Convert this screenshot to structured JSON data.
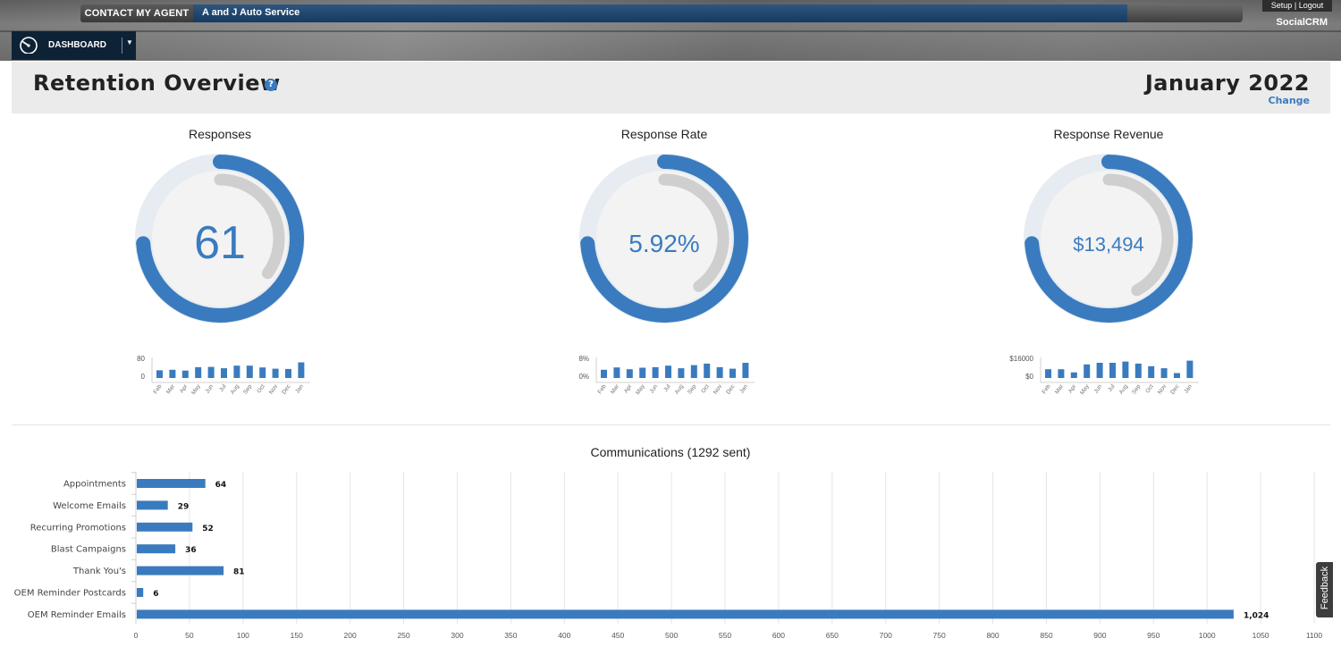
{
  "topbar": {
    "contact_label": "CONTACT MY AGENT",
    "dealer_name": "A and J Auto Service",
    "setup_label": "Setup",
    "logout_label": "Logout",
    "separator": "|",
    "brand": "SocialCRM",
    "dashboard_label": "DASHBOARD"
  },
  "header": {
    "title": "Retention Overview",
    "help": "?",
    "month": "January 2022",
    "change": "Change"
  },
  "kpis": [
    {
      "title": "Responses",
      "value": "61",
      "progress": 0.74,
      "comparison": 0.35,
      "spark": {
        "ymax_label": "80",
        "ymin_label": "0",
        "ymax": 80,
        "months": [
          "Feb",
          "Mar",
          "Apr",
          "May",
          "Jun",
          "Jul",
          "Aug",
          "Sep",
          "Oct",
          "Nov",
          "Dec",
          "Jan"
        ],
        "values": [
          30,
          32,
          29,
          42,
          43,
          38,
          48,
          48,
          41,
          36,
          35,
          61
        ]
      }
    },
    {
      "title": "Response Rate",
      "value": "5.92%",
      "progress": 0.74,
      "comparison": 0.4,
      "spark": {
        "ymax_label": "8%",
        "ymin_label": "0%",
        "ymax": 8,
        "months": [
          "Feb",
          "Mar",
          "Apr",
          "May",
          "Jun",
          "Jul",
          "Aug",
          "Sep",
          "Oct",
          "Nov",
          "Dec",
          "Jan"
        ],
        "values": [
          3.2,
          4.1,
          3.4,
          4.0,
          4.2,
          4.8,
          3.8,
          5.0,
          5.6,
          4.2,
          3.6,
          5.92
        ]
      }
    },
    {
      "title": "Response Revenue",
      "value": "$13,494",
      "progress": 0.74,
      "comparison": 0.42,
      "spark": {
        "ymax_label": "$16000",
        "ymin_label": "$0",
        "ymax": 16000,
        "months": [
          "Feb",
          "Mar",
          "Apr",
          "May",
          "Jun",
          "Jul",
          "Aug",
          "Sep",
          "Oct",
          "Nov",
          "Dec",
          "Jan"
        ],
        "values": [
          6800,
          6800,
          4400,
          10600,
          11800,
          11800,
          12800,
          11200,
          9200,
          7600,
          3800,
          13494
        ]
      }
    }
  ],
  "communications": {
    "title": "Communications (1292 sent)",
    "chart_data": {
      "type": "bar",
      "orientation": "horizontal",
      "categories": [
        "Appointments",
        "Welcome Emails",
        "Recurring Promotions",
        "Blast Campaigns",
        "Thank You's",
        "OEM Reminder Postcards",
        "OEM Reminder Emails"
      ],
      "values": [
        64,
        29,
        52,
        36,
        81,
        6,
        1024
      ],
      "value_labels": [
        "64",
        "29",
        "52",
        "36",
        "81",
        "6",
        "1,024"
      ],
      "xlim": [
        0,
        1100
      ],
      "xticks": [
        "0",
        "50",
        "100",
        "150",
        "200",
        "250",
        "300",
        "350",
        "400",
        "450",
        "500",
        "550",
        "600",
        "650",
        "700",
        "750",
        "800",
        "850",
        "900",
        "950",
        "1000",
        "1050",
        "1100"
      ],
      "grid": true
    }
  },
  "feedback_label": "Feedback",
  "colors": {
    "accent": "#3a7bbf",
    "ring_track": "#e6ecf1",
    "compare": "#cfcfcf",
    "navy": "#0e2236"
  }
}
